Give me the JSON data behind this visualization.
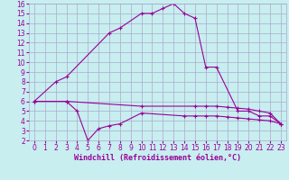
{
  "background_color": "#c8eef0",
  "grid_color": "#aaaacc",
  "line_color": "#990099",
  "xlim": [
    -0.5,
    23.5
  ],
  "ylim": [
    2,
    16
  ],
  "xticks": [
    0,
    1,
    2,
    3,
    4,
    5,
    6,
    7,
    8,
    9,
    10,
    11,
    12,
    13,
    14,
    15,
    16,
    17,
    18,
    19,
    20,
    21,
    22,
    23
  ],
  "yticks": [
    2,
    3,
    4,
    5,
    6,
    7,
    8,
    9,
    10,
    11,
    12,
    13,
    14,
    15,
    16
  ],
  "xlabel": "Windchill (Refroidissement éolien,°C)",
  "line1_x": [
    0,
    2,
    3,
    7,
    8,
    10,
    11,
    12,
    13,
    14,
    15,
    16,
    17,
    19,
    20,
    21,
    22,
    23
  ],
  "line1_y": [
    6,
    8,
    8.5,
    13,
    13.5,
    15,
    15,
    15.5,
    16,
    15,
    14.5,
    9.5,
    9.5,
    5,
    5,
    4.5,
    4.5,
    3.7
  ],
  "line2_x": [
    0,
    3,
    4,
    5,
    6,
    7,
    8,
    10,
    14,
    15,
    16,
    17,
    18,
    19,
    20,
    21,
    22,
    23
  ],
  "line2_y": [
    6,
    6,
    5,
    2,
    3.2,
    3.5,
    3.7,
    4.8,
    4.5,
    4.5,
    4.5,
    4.5,
    4.4,
    4.3,
    4.2,
    4.1,
    4.0,
    3.7
  ],
  "line3_x": [
    0,
    3,
    10,
    15,
    16,
    17,
    18,
    19,
    20,
    21,
    22,
    23
  ],
  "line3_y": [
    6,
    6,
    5.5,
    5.5,
    5.5,
    5.5,
    5.4,
    5.3,
    5.2,
    5.0,
    4.8,
    3.7
  ],
  "tick_fontsize": 5.5,
  "label_fontsize": 6.0
}
